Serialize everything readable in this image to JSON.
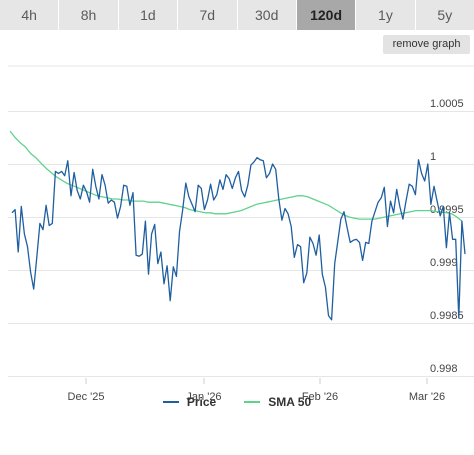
{
  "range_tabs": [
    "4h",
    "8h",
    "1d",
    "7d",
    "30d",
    "120d",
    "1y",
    "5y"
  ],
  "active_range": "120d",
  "remove_graph_label": "remove graph",
  "colors": {
    "price": "#1f5fa0",
    "sma": "#5fd38b",
    "grid": "#e6e6e6",
    "active_tab": "#a8a8a8"
  },
  "chart_data": {
    "type": "line",
    "title": "",
    "xlabel": "",
    "ylabel": "",
    "x_ticks": [
      "Dec '25",
      "Jan '26",
      "Feb '26",
      "Mar '26"
    ],
    "y_ticks": [
      "1.0005",
      "1",
      "0.9995",
      "0.999",
      "0.9985",
      "0.998"
    ],
    "ylim": [
      0.998,
      1.0007
    ],
    "grid": true,
    "legend": "bottom-center",
    "series": [
      {
        "name": "Price",
        "values": [
          0.99954,
          0.99957,
          0.99917,
          0.9996,
          0.99934,
          0.99922,
          0.99898,
          0.99882,
          0.99912,
          0.99944,
          0.99938,
          0.99961,
          0.99942,
          0.99944,
          0.99993,
          0.99991,
          0.99993,
          0.99989,
          1.00003,
          0.9997,
          0.99992,
          0.99975,
          0.99967,
          0.9998,
          0.99974,
          0.99964,
          0.99995,
          0.99979,
          0.99967,
          0.9999,
          0.9998,
          0.99963,
          0.99966,
          0.99964,
          0.99949,
          0.9996,
          0.9998,
          0.99979,
          0.99961,
          0.99973,
          0.99914,
          0.99913,
          0.99915,
          0.99946,
          0.99896,
          0.99934,
          0.99943,
          0.99906,
          0.99917,
          0.99887,
          0.99904,
          0.99871,
          0.99903,
          0.99894,
          0.99936,
          0.99957,
          0.99982,
          0.99969,
          0.99962,
          0.99955,
          0.9998,
          0.99977,
          0.99957,
          0.99966,
          0.99981,
          0.99966,
          0.99971,
          0.99985,
          0.99976,
          0.9999,
          0.99986,
          0.99977,
          0.99987,
          0.99993,
          0.99975,
          0.99969,
          0.9998,
          0.99999,
          1.00002,
          1.00006,
          1.00004,
          1.00003,
          0.99987,
          0.99991,
          1.0,
          0.99995,
          0.99967,
          0.99947,
          0.99958,
          0.99953,
          0.99941,
          0.99912,
          0.99924,
          0.99922,
          0.99888,
          0.99897,
          0.99931,
          0.99925,
          0.99914,
          0.99933,
          0.99896,
          0.99884,
          0.99857,
          0.99853,
          0.99906,
          0.99927,
          0.99948,
          0.99955,
          0.9994,
          0.99926,
          0.99928,
          0.99929,
          0.99926,
          0.99909,
          0.99926,
          0.99925,
          0.99946,
          0.99955,
          0.99964,
          0.99968,
          0.99978,
          0.99941,
          0.99965,
          0.99954,
          0.99976,
          0.9996,
          0.99948,
          0.99965,
          0.99981,
          0.99979,
          0.99971,
          1.00004,
          0.99991,
          0.99984,
          1.0,
          0.99962,
          0.99979,
          0.99965,
          0.99951,
          0.9996,
          0.99921,
          0.99954,
          0.99929,
          0.99929,
          0.99855,
          0.99946,
          0.99915
        ]
      },
      {
        "name": "SMA 50",
        "values": [
          1.00031,
          1.00025,
          1.0002,
          1.00016,
          1.0001,
          1.00006,
          1.00001,
          0.99996,
          0.99992,
          0.99988,
          0.99985,
          0.99982,
          0.9998,
          0.99978,
          0.99976,
          0.99974,
          0.99972,
          0.9997,
          0.99969,
          0.99968,
          0.99967,
          0.99967,
          0.99966,
          0.99966,
          0.99965,
          0.99965,
          0.99965,
          0.99964,
          0.99964,
          0.99964,
          0.99963,
          0.99962,
          0.99961,
          0.9996,
          0.99959,
          0.99957,
          0.99956,
          0.99955,
          0.99954,
          0.99954,
          0.99953,
          0.99953,
          0.99953,
          0.99954,
          0.99955,
          0.99956,
          0.99958,
          0.9996,
          0.99962,
          0.99963,
          0.99964,
          0.99965,
          0.99966,
          0.99967,
          0.99968,
          0.99969,
          0.9997,
          0.9997,
          0.99969,
          0.99967,
          0.99965,
          0.99963,
          0.99961,
          0.99958,
          0.99955,
          0.99952,
          0.9995,
          0.99949,
          0.99948,
          0.99948,
          0.99948,
          0.99948,
          0.99949,
          0.9995,
          0.99951,
          0.99952,
          0.99953,
          0.99954,
          0.99955,
          0.99956,
          0.99956,
          0.99956,
          0.99956,
          0.99955,
          0.99955,
          0.99954,
          0.99953,
          0.9995,
          0.99946
        ]
      }
    ]
  }
}
